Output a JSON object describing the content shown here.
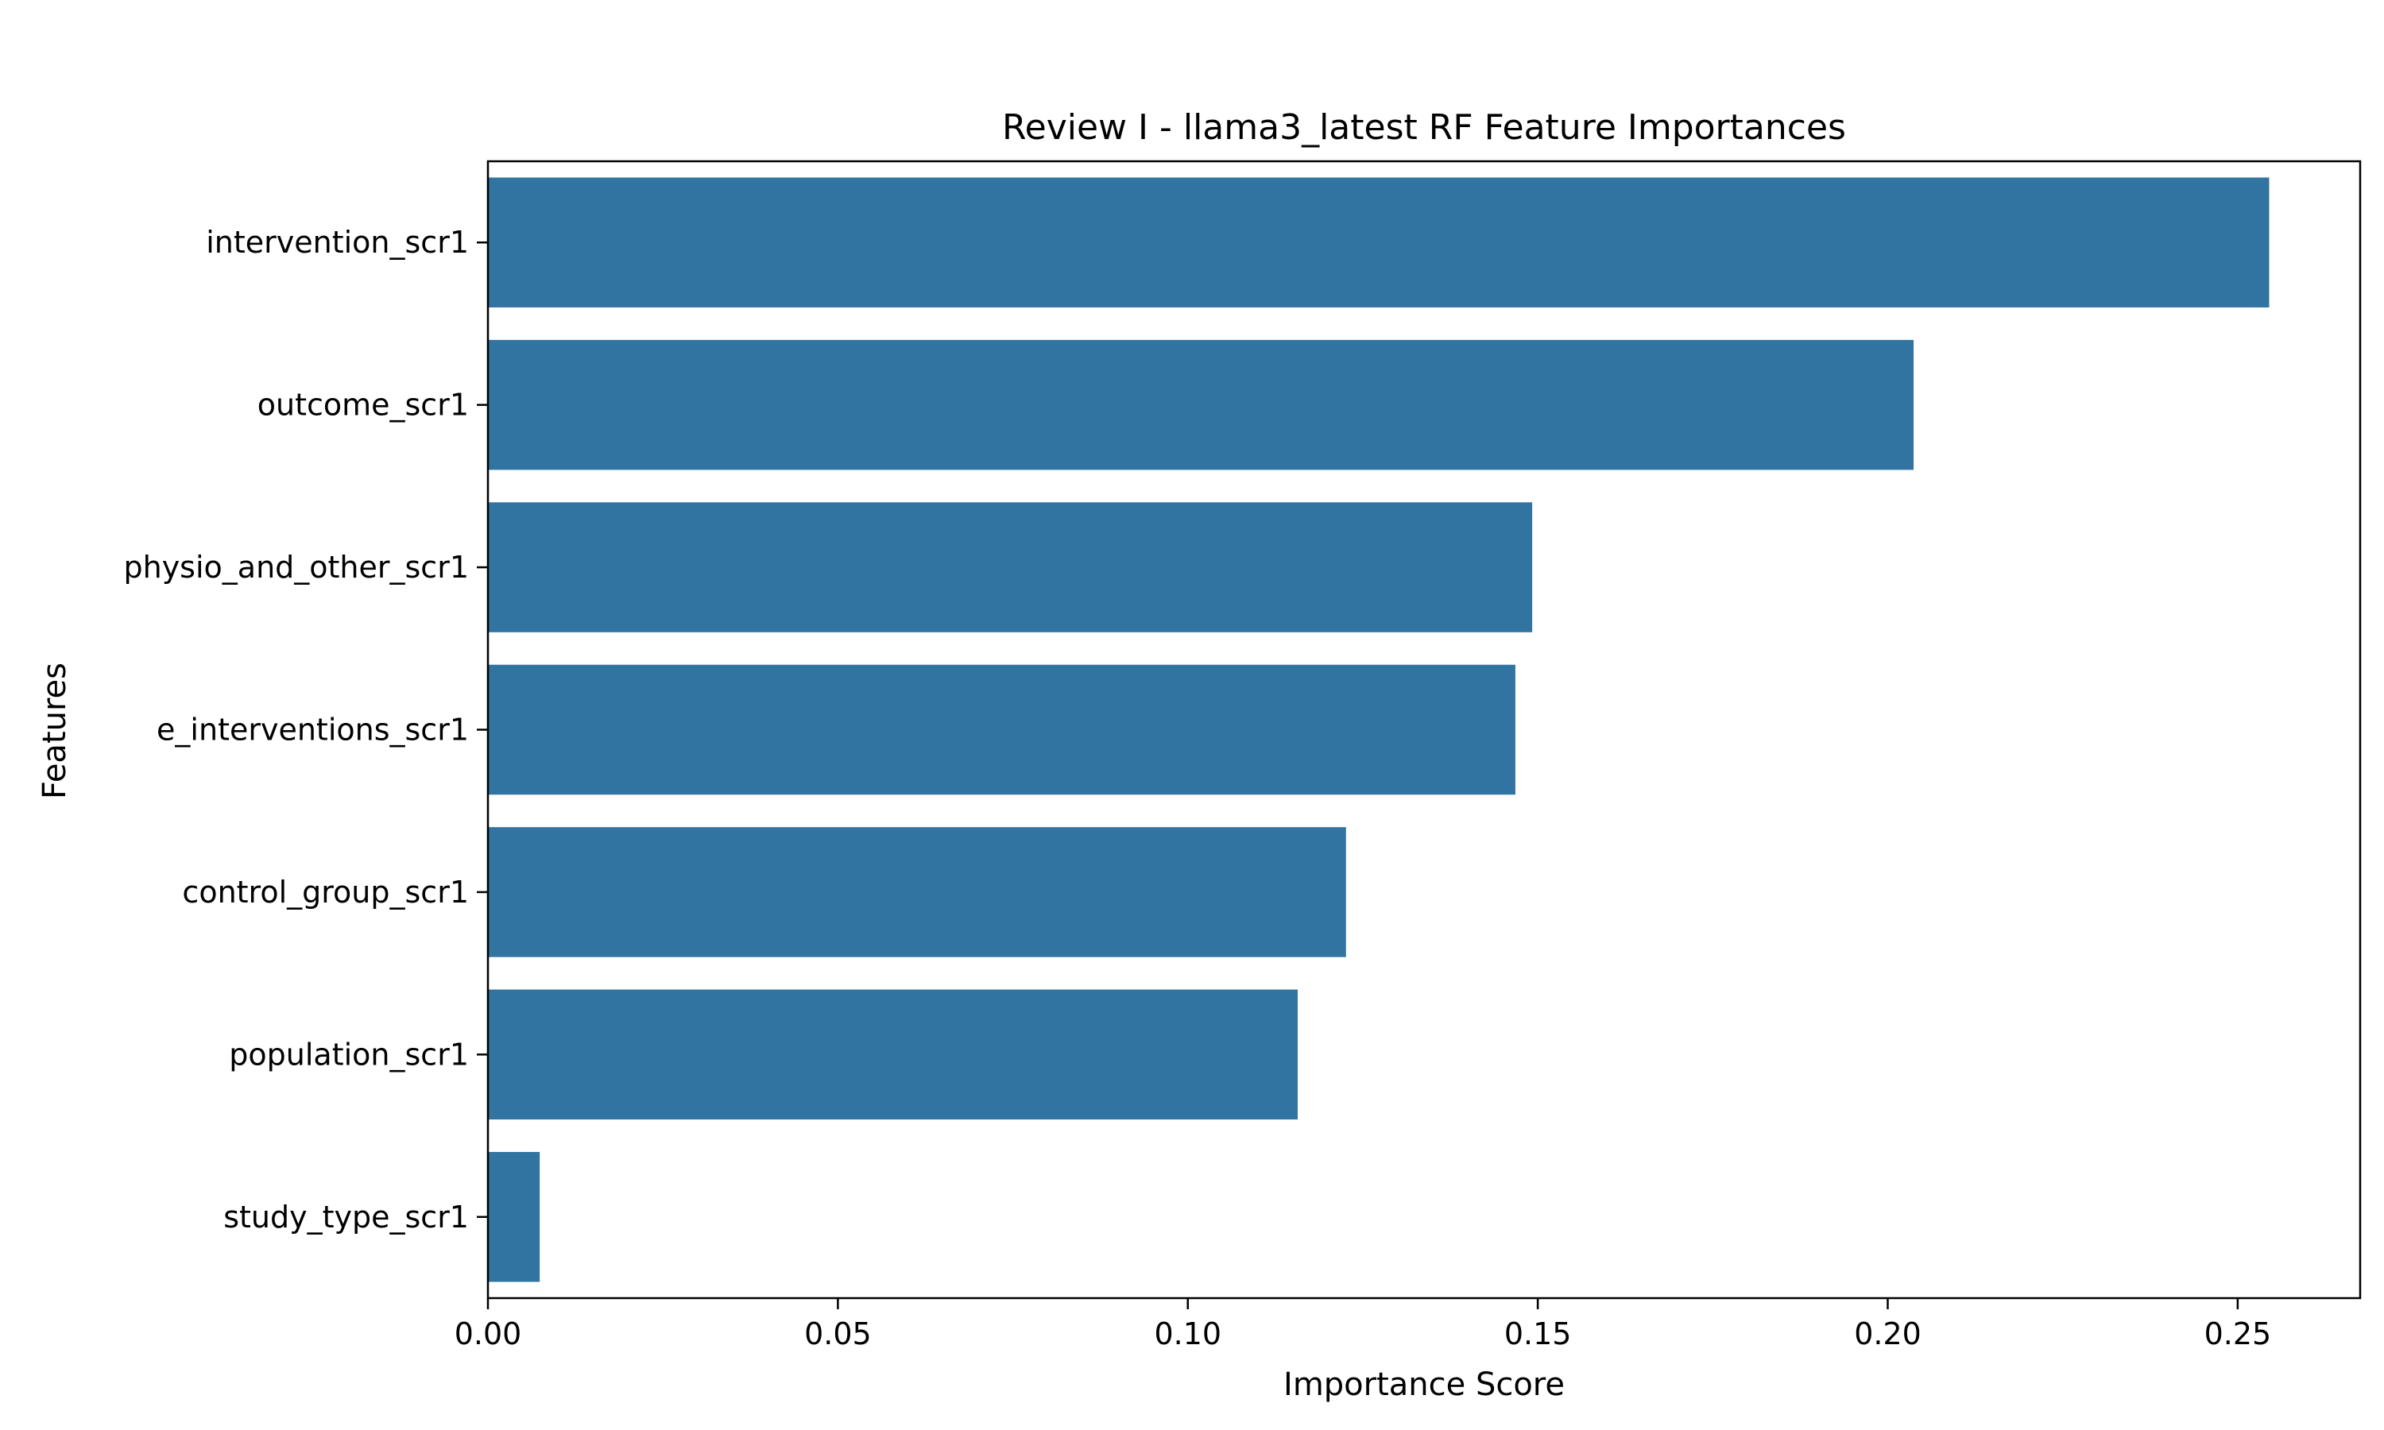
{
  "chart_data": {
    "type": "bar",
    "orientation": "horizontal",
    "title": "Review I - llama3_latest RF Feature Importances",
    "xlabel": "Importance Score",
    "ylabel": "Features",
    "categories": [
      "intervention_scr1",
      "outcome_scr1",
      "physio_and_other_scr1",
      "e_interventions_scr1",
      "control_group_scr1",
      "population_scr1",
      "study_type_scr1"
    ],
    "values": [
      0.2545,
      0.2037,
      0.1492,
      0.1468,
      0.1226,
      0.1157,
      0.0074
    ],
    "xlim": [
      0,
      0.2675
    ],
    "xticks": [
      0.0,
      0.05,
      0.1,
      0.15,
      0.2,
      0.25
    ],
    "xtick_labels": [
      "0.00",
      "0.05",
      "0.10",
      "0.15",
      "0.20",
      "0.25"
    ],
    "grid": false,
    "legend": "none",
    "colors": {
      "bar": "#3274a1",
      "axis": "#000000",
      "background": "#ffffff"
    }
  }
}
